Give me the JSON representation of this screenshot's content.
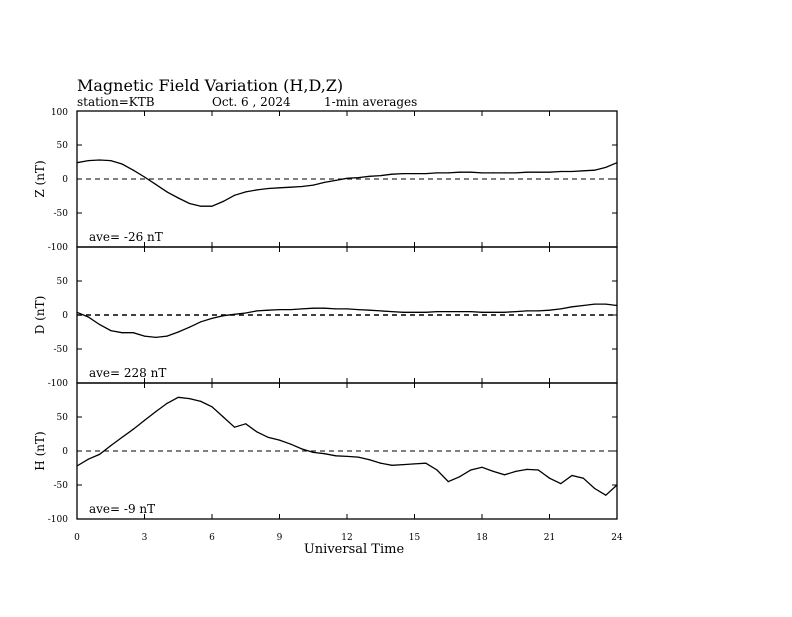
{
  "header": {
    "title": "Magnetic Field Variation (H,D,Z)",
    "station": "station=KTB",
    "date": "Oct. 6  , 2024",
    "averaging": "1-min averages"
  },
  "chart_data": {
    "type": "line",
    "xlabel": "Universal Time",
    "xlim": [
      0,
      24
    ],
    "xticks": [
      "0",
      "3",
      "6",
      "9",
      "12",
      "15",
      "18",
      "21",
      "24"
    ],
    "ylim": [
      -100,
      100
    ],
    "yticks": [
      "100",
      "50",
      "0",
      "-50",
      "-100"
    ],
    "grid": false,
    "panels": [
      {
        "ylabel": "Z (nT)",
        "ave_text": "ave= -26   nT",
        "x": [
          0,
          0.5,
          1,
          1.5,
          2,
          2.5,
          3,
          3.5,
          4,
          4.5,
          5,
          5.5,
          6,
          6.5,
          7,
          7.5,
          8,
          8.5,
          9,
          9.5,
          10,
          10.5,
          11,
          11.5,
          12,
          12.5,
          13,
          13.5,
          14,
          14.5,
          15,
          15.5,
          16,
          16.5,
          17,
          17.5,
          18,
          18.5,
          19,
          19.5,
          20,
          20.5,
          21,
          21.5,
          22,
          22.5,
          23,
          23.5,
          24
        ],
        "values": [
          24,
          27,
          28,
          27,
          22,
          13,
          3,
          -8,
          -19,
          -28,
          -36,
          -40,
          -40,
          -33,
          -24,
          -19,
          -16,
          -14,
          -13,
          -12,
          -11,
          -9,
          -5,
          -2,
          1,
          2,
          4,
          5,
          7,
          8,
          8,
          8,
          9,
          9,
          10,
          10,
          9,
          9,
          9,
          9,
          10,
          10,
          10,
          11,
          11,
          12,
          13,
          17,
          24
        ]
      },
      {
        "ylabel": "D (nT)",
        "ave_text": "ave= 228   nT",
        "x": [
          0,
          0.5,
          1,
          1.5,
          2,
          2.5,
          3,
          3.5,
          4,
          4.5,
          5,
          5.5,
          6,
          6.5,
          7,
          7.5,
          8,
          8.5,
          9,
          9.5,
          10,
          10.5,
          11,
          11.5,
          12,
          12.5,
          13,
          13.5,
          14,
          14.5,
          15,
          15.5,
          16,
          16.5,
          17,
          17.5,
          18,
          18.5,
          19,
          19.5,
          20,
          20.5,
          21,
          21.5,
          22,
          22.5,
          23,
          23.5,
          24
        ],
        "values": [
          4,
          -3,
          -14,
          -23,
          -26,
          -26,
          -31,
          -33,
          -31,
          -25,
          -18,
          -10,
          -5,
          -1,
          1,
          3,
          6,
          7,
          8,
          8,
          9,
          10,
          10,
          9,
          9,
          8,
          7,
          6,
          5,
          4,
          4,
          4,
          5,
          5,
          5,
          5,
          4,
          4,
          4,
          5,
          6,
          6,
          7,
          9,
          12,
          14,
          16,
          16,
          14
        ]
      },
      {
        "ylabel": "H (nT)",
        "ave_text": "ave= -9     nT",
        "x": [
          0,
          0.5,
          1,
          1.5,
          2,
          2.5,
          3,
          3.5,
          4,
          4.5,
          5,
          5.5,
          6,
          6.5,
          7,
          7.5,
          8,
          8.5,
          9,
          9.5,
          10,
          10.5,
          11,
          11.5,
          12,
          12.5,
          13,
          13.5,
          14,
          14.5,
          15,
          15.5,
          16,
          16.5,
          17,
          17.5,
          18,
          18.5,
          19,
          19.5,
          20,
          20.5,
          21,
          21.5,
          22,
          22.5,
          23,
          23.5,
          24
        ],
        "values": [
          -22,
          -12,
          -5,
          8,
          20,
          32,
          45,
          58,
          70,
          79,
          77,
          73,
          65,
          50,
          35,
          40,
          28,
          20,
          16,
          10,
          3,
          -2,
          -4,
          -7,
          -8,
          -9,
          -13,
          -18,
          -21,
          -20,
          -19,
          -18,
          -28,
          -45,
          -38,
          -28,
          -24,
          -30,
          -35,
          -30,
          -27,
          -28,
          -40,
          -48,
          -36,
          -40,
          -55,
          -65,
          -50
        ]
      }
    ]
  }
}
